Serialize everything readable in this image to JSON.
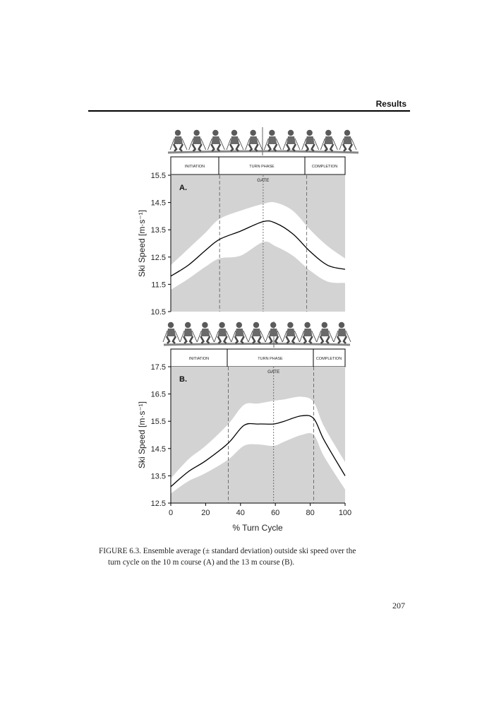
{
  "header": {
    "title": "Results"
  },
  "phases": {
    "initiation": "INITIATION",
    "turn_phase": "TURN PHASE",
    "completion": "COMPLETION",
    "gate": "GATE"
  },
  "xlabel": "% Turn Cycle",
  "caption": {
    "line1": "FIGURE 6.3.  Ensemble average (± standard deviation) outside ski speed over the",
    "line2": "turn cycle on the 10 m course (A) and the 13 m course (B)."
  },
  "page_number": "207",
  "colors": {
    "background_band": "#d3d3d3",
    "sd_band": "#ffffff",
    "mean_line": "#000000",
    "phase_line": "#555555"
  },
  "chart_data": [
    {
      "type": "line",
      "panel_label": "A.",
      "ylabel": "Ski Speed [m·s⁻¹]",
      "ylim": [
        10.5,
        15.5
      ],
      "xlim": [
        0,
        100
      ],
      "yticks": [
        "15.5",
        "14.5",
        "13.5",
        "12.5",
        "11.5",
        "10.5"
      ],
      "phase_boundaries": [
        28,
        53,
        78
      ],
      "series": [
        {
          "x": [
            0,
            10,
            20,
            28,
            40,
            53,
            60,
            70,
            80,
            90,
            100
          ],
          "mean": [
            11.8,
            12.2,
            12.75,
            13.15,
            13.45,
            13.8,
            13.75,
            13.35,
            12.7,
            12.2,
            12.05
          ],
          "upper": [
            12.2,
            12.8,
            13.4,
            13.9,
            14.2,
            14.45,
            14.5,
            14.2,
            13.5,
            12.9,
            12.45
          ],
          "lower": [
            11.3,
            11.7,
            12.15,
            12.45,
            12.55,
            13.05,
            12.9,
            12.55,
            12.0,
            11.6,
            11.55
          ]
        }
      ]
    },
    {
      "type": "line",
      "panel_label": "B.",
      "ylabel": "Ski Speed [m·s⁻¹]",
      "ylim": [
        12.5,
        17.5
      ],
      "xlim": [
        0,
        100
      ],
      "xticks": [
        "0",
        "20",
        "40",
        "60",
        "80",
        "100"
      ],
      "yticks": [
        "17.5",
        "16.5",
        "15.5",
        "14.5",
        "13.5",
        "12.5"
      ],
      "phase_boundaries": [
        33,
        59,
        82
      ],
      "series": [
        {
          "x": [
            0,
            10,
            20,
            33,
            42,
            50,
            59,
            65,
            75,
            82,
            88,
            100
          ],
          "mean": [
            13.1,
            13.65,
            14.05,
            14.7,
            15.35,
            15.4,
            15.4,
            15.5,
            15.7,
            15.6,
            14.8,
            13.5
          ],
          "upper": [
            13.4,
            14.1,
            14.6,
            15.4,
            16.1,
            16.15,
            16.25,
            16.3,
            16.4,
            16.2,
            15.3,
            14.0
          ],
          "lower": [
            12.85,
            13.3,
            13.6,
            14.1,
            14.6,
            14.65,
            14.6,
            14.75,
            15.0,
            15.0,
            14.2,
            13.0
          ]
        }
      ]
    }
  ]
}
